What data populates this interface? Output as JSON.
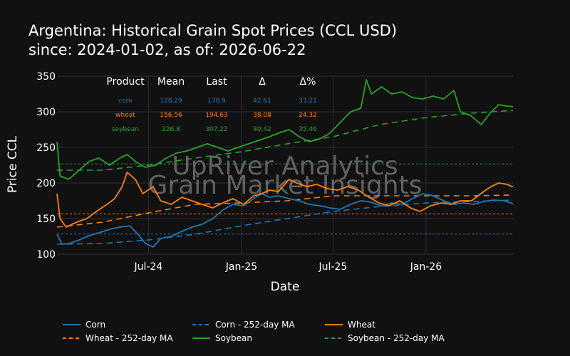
{
  "title_line1": "Argentina: Historical Grain Spot Prices (CCL USD)",
  "title_line2": "since: 2024-01-02, as of: 2026-06-22",
  "watermark": [
    "UpRiver Analytics",
    "Grain Market Insights"
  ],
  "table": {
    "headers": [
      "Product",
      "Mean",
      "Last",
      "Δ",
      "Δ%"
    ],
    "rows": [
      {
        "product": "corn",
        "mean": "128.29",
        "last": "170.9",
        "delta": "42.61",
        "pct": "33.21",
        "color": "#1f77b4"
      },
      {
        "product": "wheat",
        "mean": "156.56",
        "last": "194.63",
        "delta": "38.08",
        "pct": "24.32",
        "color": "#ff7f0e"
      },
      {
        "product": "soybean",
        "mean": "226.8",
        "last": "307.22",
        "delta": "80.42",
        "pct": "35.46",
        "color": "#2ca02c"
      }
    ]
  },
  "colors": {
    "corn": "#1f77b4",
    "wheat": "#ff7f0e",
    "soybean": "#2ca02c",
    "background": "#111111",
    "grid": "#2a2a3a"
  },
  "chart_data": {
    "type": "line",
    "xlabel": "Date",
    "ylabel": "Price CCL",
    "xlim": [
      "2024-01-02",
      "2026-06-22"
    ],
    "ylim": [
      100,
      352
    ],
    "yticks": [
      100,
      150,
      200,
      250,
      300,
      350
    ],
    "xticks": [
      {
        "date": "2024-07-01",
        "label": "Jul-24"
      },
      {
        "date": "2025-01-01",
        "label": "Jan-25"
      },
      {
        "date": "2025-07-01",
        "label": "Jul-25"
      },
      {
        "date": "2026-01-01",
        "label": "Jan-26"
      }
    ],
    "grid": true,
    "legend_position": "bottom",
    "mean_lines": [
      {
        "series": "Corn",
        "value": 128.29,
        "color": "#1f77b4"
      },
      {
        "series": "Wheat",
        "value": 156.56,
        "color": "#ff7f0e"
      },
      {
        "series": "Soybean",
        "value": 226.8,
        "color": "#2ca02c"
      }
    ],
    "series": [
      {
        "name": "Corn",
        "style": "solid",
        "color": "#1f77b4",
        "points": [
          [
            "2024-01-02",
            128
          ],
          [
            "2024-01-12",
            114
          ],
          [
            "2024-01-27",
            115
          ],
          [
            "2024-02-15",
            120
          ],
          [
            "2024-03-05",
            126
          ],
          [
            "2024-03-25",
            130
          ],
          [
            "2024-04-15",
            135
          ],
          [
            "2024-05-05",
            138
          ],
          [
            "2024-05-25",
            140
          ],
          [
            "2024-06-10",
            128
          ],
          [
            "2024-06-25",
            115
          ],
          [
            "2024-07-10",
            110
          ],
          [
            "2024-07-25",
            122
          ],
          [
            "2024-08-15",
            125
          ],
          [
            "2024-09-05",
            132
          ],
          [
            "2024-09-25",
            138
          ],
          [
            "2024-10-15",
            142
          ],
          [
            "2024-11-05",
            150
          ],
          [
            "2024-11-25",
            162
          ],
          [
            "2024-12-15",
            170
          ],
          [
            "2025-01-05",
            168
          ],
          [
            "2025-01-25",
            178
          ],
          [
            "2025-02-10",
            185
          ],
          [
            "2025-02-25",
            180
          ],
          [
            "2025-03-15",
            182
          ],
          [
            "2025-04-05",
            178
          ],
          [
            "2025-04-25",
            175
          ],
          [
            "2025-05-15",
            170
          ],
          [
            "2025-06-05",
            168
          ],
          [
            "2025-06-25",
            165
          ],
          [
            "2025-07-15",
            163
          ],
          [
            "2025-08-05",
            170
          ],
          [
            "2025-08-25",
            175
          ],
          [
            "2025-09-15",
            173
          ],
          [
            "2025-10-05",
            168
          ],
          [
            "2025-10-25",
            172
          ],
          [
            "2025-11-15",
            170
          ],
          [
            "2025-12-05",
            178
          ],
          [
            "2025-12-25",
            185
          ],
          [
            "2026-01-15",
            182
          ],
          [
            "2026-02-05",
            175
          ],
          [
            "2026-02-25",
            170
          ],
          [
            "2026-03-15",
            172
          ],
          [
            "2026-04-05",
            170
          ],
          [
            "2026-04-25",
            174
          ],
          [
            "2026-05-15",
            176
          ],
          [
            "2026-06-05",
            175
          ],
          [
            "2026-06-22",
            170.9
          ]
        ]
      },
      {
        "name": "Corn - 252-day MA",
        "style": "dashed",
        "color": "#1f77b4",
        "points": [
          [
            "2024-01-02",
            114
          ],
          [
            "2024-04-01",
            115
          ],
          [
            "2024-07-01",
            120
          ],
          [
            "2024-10-01",
            128
          ],
          [
            "2025-01-02",
            140
          ],
          [
            "2025-04-01",
            150
          ],
          [
            "2025-07-01",
            160
          ],
          [
            "2025-10-01",
            167
          ],
          [
            "2026-01-02",
            172
          ],
          [
            "2026-04-01",
            174
          ],
          [
            "2026-06-22",
            176
          ]
        ]
      },
      {
        "name": "Wheat",
        "style": "solid",
        "color": "#ff7f0e",
        "points": [
          [
            "2024-01-02",
            185
          ],
          [
            "2024-01-08",
            150
          ],
          [
            "2024-01-20",
            138
          ],
          [
            "2024-02-10",
            145
          ],
          [
            "2024-03-01",
            150
          ],
          [
            "2024-03-20",
            160
          ],
          [
            "2024-04-10",
            170
          ],
          [
            "2024-04-25",
            178
          ],
          [
            "2024-05-10",
            195
          ],
          [
            "2024-05-20",
            215
          ],
          [
            "2024-06-05",
            205
          ],
          [
            "2024-06-20",
            185
          ],
          [
            "2024-07-10",
            195
          ],
          [
            "2024-07-25",
            175
          ],
          [
            "2024-08-15",
            170
          ],
          [
            "2024-09-05",
            180
          ],
          [
            "2024-09-25",
            175
          ],
          [
            "2024-10-15",
            170
          ],
          [
            "2024-11-05",
            165
          ],
          [
            "2024-11-25",
            172
          ],
          [
            "2024-12-15",
            178
          ],
          [
            "2025-01-05",
            170
          ],
          [
            "2025-01-25",
            182
          ],
          [
            "2025-02-10",
            185
          ],
          [
            "2025-02-25",
            190
          ],
          [
            "2025-03-15",
            188
          ],
          [
            "2025-04-05",
            205
          ],
          [
            "2025-04-20",
            200
          ],
          [
            "2025-05-10",
            195
          ],
          [
            "2025-05-30",
            198
          ],
          [
            "2025-06-20",
            192
          ],
          [
            "2025-07-10",
            190
          ],
          [
            "2025-07-30",
            195
          ],
          [
            "2025-08-20",
            190
          ],
          [
            "2025-09-10",
            180
          ],
          [
            "2025-09-30",
            172
          ],
          [
            "2025-10-20",
            168
          ],
          [
            "2025-11-10",
            175
          ],
          [
            "2025-12-01",
            165
          ],
          [
            "2025-12-20",
            160
          ],
          [
            "2026-01-10",
            168
          ],
          [
            "2026-02-01",
            172
          ],
          [
            "2026-02-20",
            170
          ],
          [
            "2026-03-10",
            175
          ],
          [
            "2026-04-01",
            175
          ],
          [
            "2026-04-25",
            188
          ],
          [
            "2026-05-10",
            195
          ],
          [
            "2026-05-25",
            200
          ],
          [
            "2026-06-10",
            198
          ],
          [
            "2026-06-22",
            194.63
          ]
        ]
      },
      {
        "name": "Wheat - 252-day MA",
        "style": "dashed",
        "color": "#ff7f0e",
        "points": [
          [
            "2024-01-02",
            138
          ],
          [
            "2024-04-01",
            145
          ],
          [
            "2024-07-01",
            158
          ],
          [
            "2024-10-01",
            170
          ],
          [
            "2025-01-02",
            172
          ],
          [
            "2025-04-01",
            175
          ],
          [
            "2025-07-01",
            182
          ],
          [
            "2025-10-01",
            182
          ],
          [
            "2026-01-02",
            182
          ],
          [
            "2026-04-01",
            182
          ],
          [
            "2026-06-22",
            183
          ]
        ]
      },
      {
        "name": "Soybean",
        "style": "solid",
        "color": "#2ca02c",
        "points": [
          [
            "2024-01-02",
            258
          ],
          [
            "2024-01-08",
            210
          ],
          [
            "2024-01-25",
            205
          ],
          [
            "2024-02-15",
            218
          ],
          [
            "2024-03-05",
            230
          ],
          [
            "2024-03-25",
            235
          ],
          [
            "2024-04-15",
            225
          ],
          [
            "2024-05-05",
            235
          ],
          [
            "2024-05-20",
            240
          ],
          [
            "2024-06-05",
            230
          ],
          [
            "2024-06-25",
            222
          ],
          [
            "2024-07-15",
            225
          ],
          [
            "2024-08-05",
            235
          ],
          [
            "2024-08-25",
            242
          ],
          [
            "2024-09-15",
            245
          ],
          [
            "2024-10-05",
            250
          ],
          [
            "2024-10-25",
            255
          ],
          [
            "2024-11-15",
            250
          ],
          [
            "2024-12-05",
            245
          ],
          [
            "2024-12-25",
            250
          ],
          [
            "2025-01-15",
            255
          ],
          [
            "2025-02-05",
            260
          ],
          [
            "2025-02-25",
            265
          ],
          [
            "2025-03-15",
            270
          ],
          [
            "2025-04-05",
            275
          ],
          [
            "2025-04-25",
            265
          ],
          [
            "2025-05-15",
            258
          ],
          [
            "2025-06-05",
            262
          ],
          [
            "2025-06-25",
            270
          ],
          [
            "2025-07-15",
            285
          ],
          [
            "2025-08-05",
            300
          ],
          [
            "2025-08-25",
            305
          ],
          [
            "2025-09-05",
            345
          ],
          [
            "2025-09-15",
            325
          ],
          [
            "2025-10-05",
            335
          ],
          [
            "2025-10-25",
            325
          ],
          [
            "2025-11-15",
            328
          ],
          [
            "2025-12-05",
            320
          ],
          [
            "2025-12-25",
            318
          ],
          [
            "2026-01-15",
            322
          ],
          [
            "2026-02-05",
            318
          ],
          [
            "2026-02-25",
            330
          ],
          [
            "2026-03-10",
            300
          ],
          [
            "2026-03-30",
            295
          ],
          [
            "2026-04-20",
            282
          ],
          [
            "2026-05-10",
            300
          ],
          [
            "2026-05-25",
            310
          ],
          [
            "2026-06-10",
            308
          ],
          [
            "2026-06-22",
            307.22
          ]
        ]
      },
      {
        "name": "Soybean - 252-day MA",
        "style": "dashed",
        "color": "#2ca02c",
        "points": [
          [
            "2024-01-02",
            218
          ],
          [
            "2024-04-01",
            218
          ],
          [
            "2024-07-01",
            225
          ],
          [
            "2024-10-01",
            235
          ],
          [
            "2025-01-02",
            244
          ],
          [
            "2025-04-01",
            255
          ],
          [
            "2025-07-01",
            265
          ],
          [
            "2025-10-01",
            282
          ],
          [
            "2026-01-02",
            292
          ],
          [
            "2026-04-01",
            298
          ],
          [
            "2026-06-22",
            302
          ]
        ]
      }
    ]
  },
  "legend": [
    {
      "label": "Corn",
      "color": "#1f77b4",
      "style": "solid"
    },
    {
      "label": "Corn - 252-day MA",
      "color": "#1f77b4",
      "style": "dashed"
    },
    {
      "label": "Wheat",
      "color": "#ff7f0e",
      "style": "solid"
    },
    {
      "label": "Wheat - 252-day MA",
      "color": "#ff7f0e",
      "style": "dashed"
    },
    {
      "label": "Soybean",
      "color": "#2ca02c",
      "style": "solid"
    },
    {
      "label": "Soybean - 252-day MA",
      "color": "#2ca02c",
      "style": "dashed"
    }
  ]
}
